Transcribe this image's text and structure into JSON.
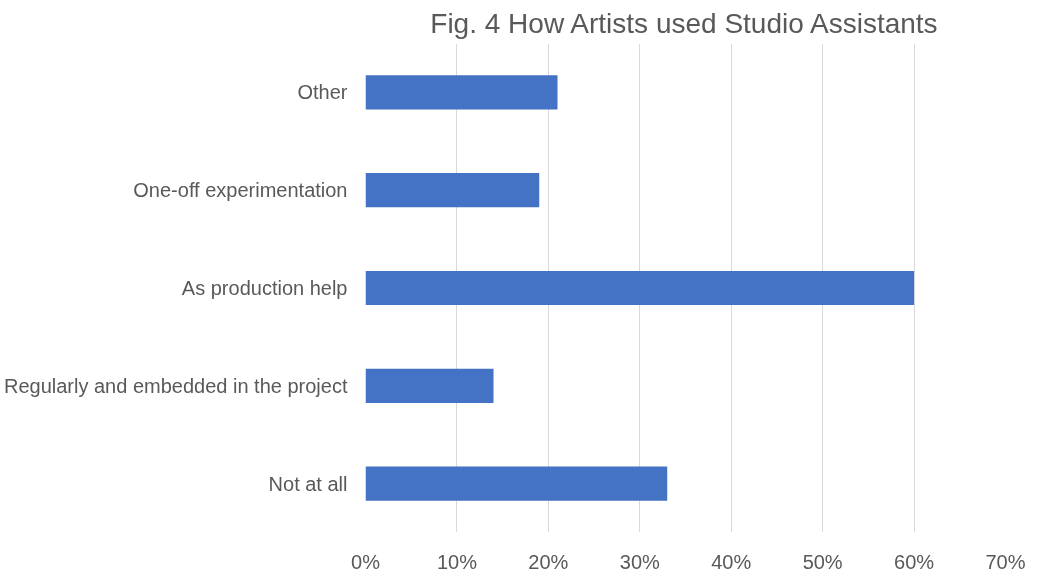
{
  "chart_data": {
    "type": "bar",
    "orientation": "horizontal",
    "title": "Fig. 4 How Artists used Studio Assistants",
    "categories": [
      "Other",
      "One-off experimentation",
      "As production help",
      "Regularly and embedded in the project",
      "Not at all"
    ],
    "values": [
      21,
      19,
      60,
      14,
      33
    ],
    "color": "#4472c4",
    "xlim": [
      0,
      70
    ],
    "xticks": [
      {
        "value": 0,
        "label": "0%"
      },
      {
        "value": 10,
        "label": "10%"
      },
      {
        "value": 20,
        "label": "20%"
      },
      {
        "value": 30,
        "label": "30%"
      },
      {
        "value": 40,
        "label": "40%"
      },
      {
        "value": 50,
        "label": "50%"
      },
      {
        "value": 60,
        "label": "60%"
      },
      {
        "value": 70,
        "label": "70%"
      }
    ],
    "grid": "x"
  }
}
